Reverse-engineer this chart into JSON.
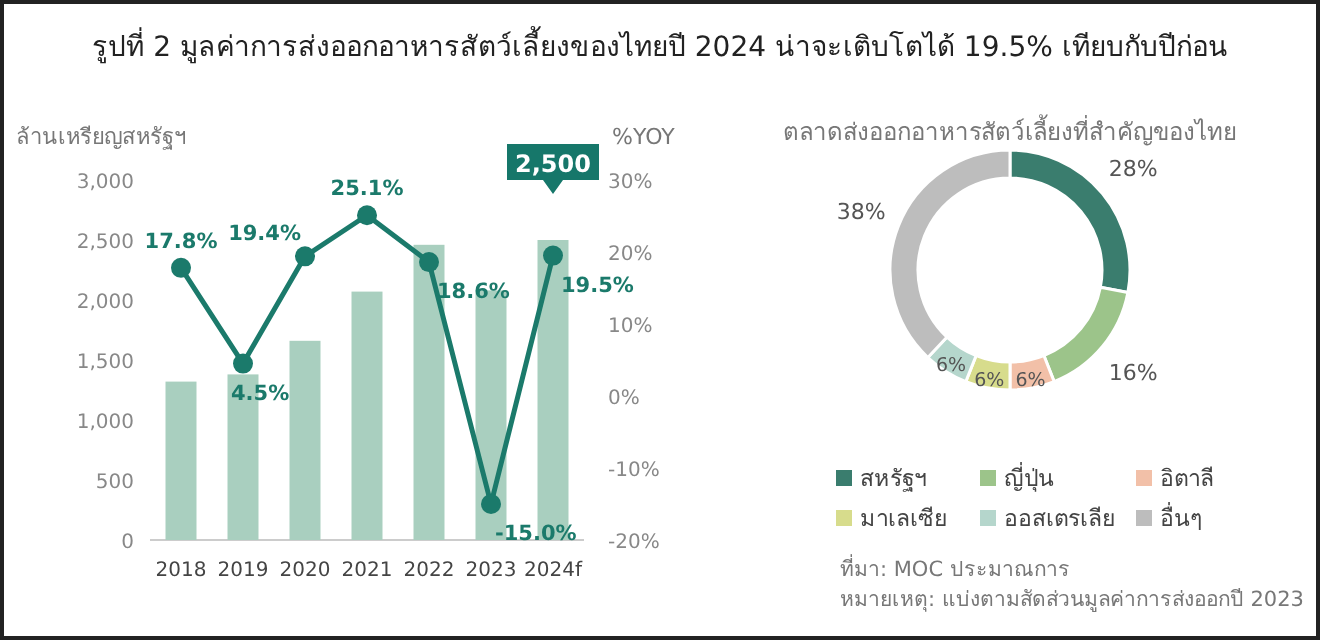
{
  "chart_data": [
    {
      "type": "bar",
      "title": "รูปที่ 2 มูลค่าการส่งออกอาหารสัตว์เลี้ยงของไทยปี 2024 น่าจะเติบโตได้ 19.5% เทียบกับปีก่อน",
      "ylabel": "ล้านเหรียญสหรัฐฯ",
      "y2label": "%YOY",
      "categories": [
        "2018",
        "2019",
        "2020",
        "2021",
        "2022",
        "2023",
        "2024f"
      ],
      "series": [
        {
          "type": "bar",
          "color": "#a9cfbf",
          "values": [
            1320,
            1380,
            1660,
            2070,
            2460,
            2080,
            2500
          ],
          "value_labels": [
            null,
            null,
            null,
            null,
            null,
            null,
            "2,500"
          ]
        },
        {
          "type": "line",
          "axis": "y2",
          "color": "#1b7a6b",
          "marker": "circle",
          "values": [
            17.8,
            4.5,
            19.4,
            25.1,
            18.6,
            -15.0,
            19.5
          ],
          "value_labels": [
            "17.8%",
            "4.5%",
            "19.4%",
            "25.1%",
            "18.6%",
            "-15.0%",
            "19.5%"
          ]
        }
      ],
      "ylim": [
        0,
        3000
      ],
      "yticks": [
        {
          "value": 0,
          "label": "0"
        },
        {
          "value": 500,
          "label": "500"
        },
        {
          "value": 1000,
          "label": "1,000"
        },
        {
          "value": 1500,
          "label": "1,500"
        },
        {
          "value": 2000,
          "label": "2,000"
        },
        {
          "value": 2500,
          "label": "2,500"
        },
        {
          "value": 3000,
          "label": "3,000"
        }
      ],
      "y2lim": [
        -20,
        30
      ],
      "y2ticks": [
        {
          "value": -20,
          "label": "-20%"
        },
        {
          "value": -10,
          "label": "-10%"
        },
        {
          "value": 0,
          "label": "0%"
        },
        {
          "value": 10,
          "label": "10%"
        },
        {
          "value": 20,
          "label": "20%"
        },
        {
          "value": 30,
          "label": "30%"
        }
      ]
    },
    {
      "type": "donut",
      "title": "ตลาดส่งออกอาหารสัตว์เลี้ยงที่สำคัญของไทย",
      "legend": "bottom",
      "categories": [
        "สหรัฐฯ",
        "ญี่ปุ่น",
        "อิตาลี",
        "มาเลเซีย",
        "ออสเตรเลีย",
        "อื่นๆ"
      ],
      "values": [
        28,
        16,
        6,
        6,
        6,
        38
      ],
      "colors": [
        "#3a7d6e",
        "#9cc48a",
        "#f2c0a8",
        "#d7dc8c",
        "#b5d6cc",
        "#bdbdbd"
      ],
      "value_labels": [
        "28%",
        "16%",
        "6%",
        "6%",
        "6%",
        "38%"
      ],
      "annotations": [
        "ที่มา: MOC ประมาณการ",
        "หมายเหตุ: แบ่งตามสัดส่วนมูลค่าการส่งออกปี 2023"
      ]
    }
  ]
}
